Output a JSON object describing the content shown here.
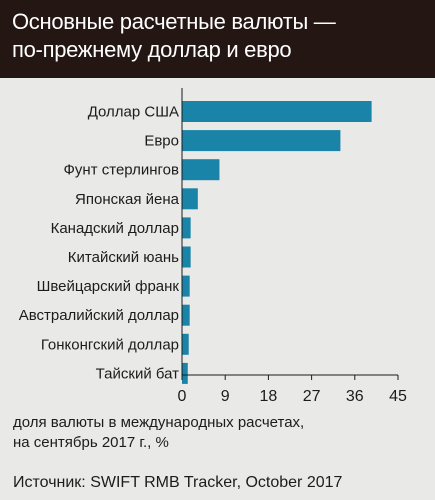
{
  "header": {
    "title_line1": "Основные расчетные валюты —",
    "title_line2": "по-прежнему доллар и евро"
  },
  "caption": {
    "line1": "доля валюты в международных расчетах,",
    "line2": "на сентябрь 2017 г., %"
  },
  "source": "Источник: SWIFT RMB Tracker, October 2017",
  "chart_data": {
    "type": "bar",
    "orientation": "horizontal",
    "categories": [
      "Доллар США",
      "Евро",
      "Фунт стерлингов",
      "Японская йена",
      "Канадский доллар",
      "Китайский юань",
      "Швейцарский франк",
      "Австралийский доллар",
      "Гонконгский доллар",
      "Тайский бат"
    ],
    "values": [
      39.5,
      33.0,
      7.8,
      3.3,
      1.8,
      1.8,
      1.6,
      1.6,
      1.4,
      1.2
    ],
    "xlim": [
      0,
      45
    ],
    "xticks": [
      "0",
      "9",
      "18",
      "27",
      "36",
      "45"
    ],
    "bar_color": "#1a84a8",
    "grid": false
  }
}
